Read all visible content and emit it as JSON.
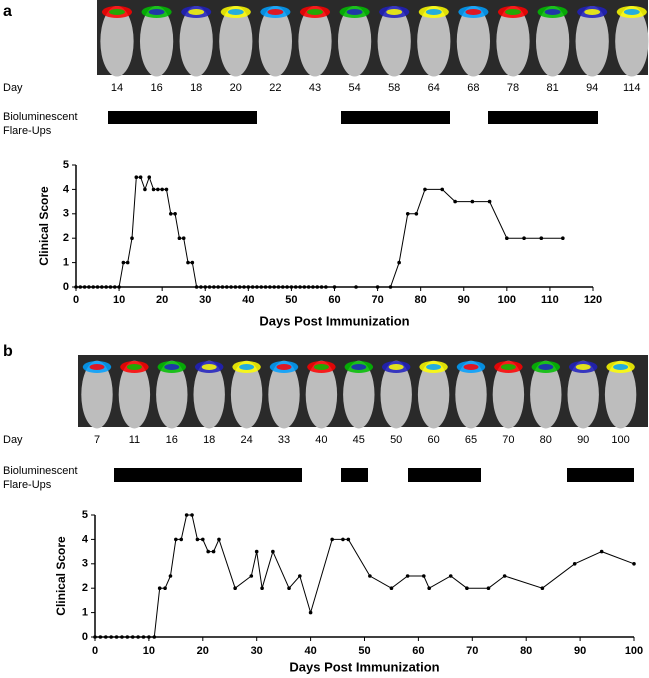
{
  "chart_data": [
    {
      "type": "line",
      "panel_label": "a",
      "day_label": "Day",
      "days": [
        "14",
        "16",
        "18",
        "20",
        "22",
        "43",
        "54",
        "58",
        "64",
        "68",
        "78",
        "81",
        "94",
        "114"
      ],
      "flare_label": [
        "Bioluminescent",
        "Flare-Ups"
      ],
      "x_label": "Days Post Immunization",
      "y_label": "Clinical Score",
      "xlim": [
        0,
        120
      ],
      "ylim": [
        0,
        5
      ],
      "xticks": [
        0,
        10,
        20,
        30,
        40,
        50,
        60,
        70,
        80,
        90,
        100,
        110,
        120
      ],
      "yticks": [
        0,
        1,
        2,
        3,
        4,
        5
      ],
      "x": [
        0,
        1,
        2,
        3,
        4,
        5,
        6,
        7,
        8,
        9,
        10,
        11,
        12,
        13,
        14,
        15,
        16,
        17,
        18,
        19,
        20,
        21,
        22,
        23,
        24,
        25,
        26,
        27,
        28,
        29,
        30,
        31,
        32,
        33,
        34,
        35,
        36,
        37,
        38,
        39,
        40,
        41,
        42,
        43,
        44,
        45,
        46,
        47,
        48,
        49,
        50,
        51,
        52,
        53,
        54,
        55,
        56,
        57,
        58,
        60,
        65,
        70,
        73,
        75,
        77,
        79,
        81,
        85,
        88,
        92,
        96,
        100,
        104,
        108,
        113
      ],
      "values": [
        0,
        0,
        0,
        0,
        0,
        0,
        0,
        0,
        0,
        0,
        0,
        1,
        1,
        2,
        4.5,
        4.5,
        4,
        4.5,
        4,
        4,
        4,
        4,
        3,
        3,
        2,
        2,
        1,
        1,
        0,
        0,
        0,
        0,
        0,
        0,
        0,
        0,
        0,
        0,
        0,
        0,
        0,
        0,
        0,
        0,
        0,
        0,
        0,
        0,
        0,
        0,
        0,
        0,
        0,
        0,
        0,
        0,
        0,
        0,
        0,
        0,
        0,
        0,
        0,
        1,
        3,
        3,
        4,
        4,
        3.5,
        3.5,
        3.5,
        2,
        2,
        2,
        2
      ],
      "color": "#000000"
    },
    {
      "type": "line",
      "panel_label": "b",
      "day_label": "Day",
      "days": [
        "7",
        "11",
        "16",
        "18",
        "24",
        "33",
        "40",
        "45",
        "50",
        "60",
        "65",
        "70",
        "80",
        "90",
        "100"
      ],
      "flare_label": [
        "Bioluminescent",
        "Flare-Ups"
      ],
      "x_label": "Days Post Immunization",
      "y_label": "Clinical Score",
      "xlim": [
        0,
        100
      ],
      "ylim": [
        0,
        5
      ],
      "xticks": [
        0,
        10,
        20,
        30,
        40,
        50,
        60,
        70,
        80,
        90,
        100
      ],
      "yticks": [
        0,
        1,
        2,
        3,
        4,
        5
      ],
      "x": [
        0,
        1,
        2,
        3,
        4,
        5,
        6,
        7,
        8,
        9,
        10,
        11,
        12,
        13,
        14,
        15,
        16,
        17,
        18,
        19,
        20,
        21,
        22,
        23,
        26,
        29,
        30,
        31,
        33,
        36,
        38,
        40,
        44,
        46,
        47,
        51,
        55,
        58,
        61,
        62,
        66,
        69,
        73,
        76,
        83,
        89,
        94,
        100
      ],
      "values": [
        0,
        0,
        0,
        0,
        0,
        0,
        0,
        0,
        0,
        0,
        0,
        0,
        2,
        2,
        2.5,
        4,
        4,
        5,
        5,
        4,
        4,
        3.5,
        3.5,
        4,
        2,
        2.5,
        3.5,
        2,
        3.5,
        2,
        2.5,
        1,
        4,
        4,
        4,
        2.5,
        2,
        2.5,
        2.5,
        2,
        2.5,
        2,
        2,
        2.5,
        2,
        3,
        3.5,
        3
      ],
      "color": "#000000"
    }
  ]
}
